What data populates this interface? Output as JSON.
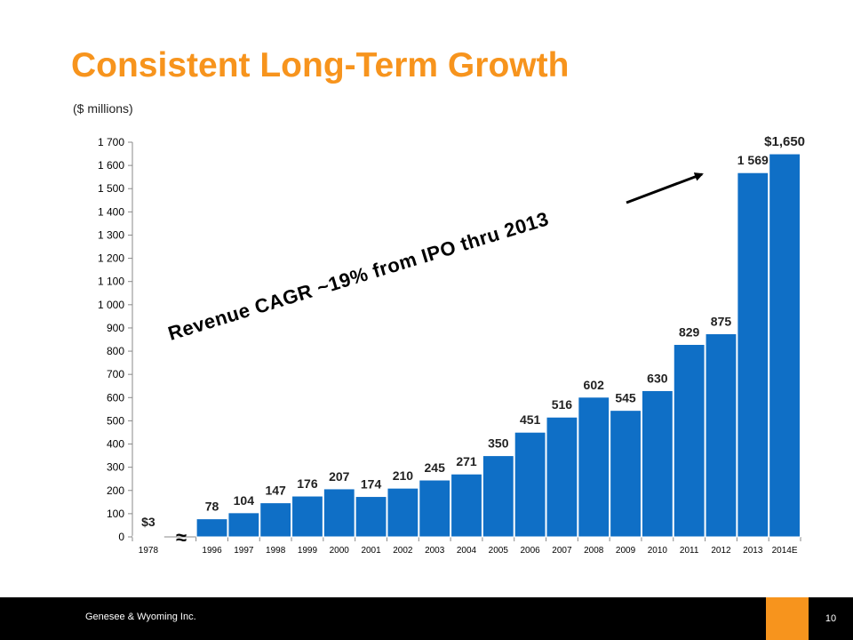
{
  "slide": {
    "title": "Consistent Long-Term Growth",
    "units": "($ millions)"
  },
  "chart_data": {
    "type": "bar",
    "categories": [
      "1978",
      "1996",
      "1997",
      "1998",
      "1999",
      "2000",
      "2001",
      "2002",
      "2003",
      "2004",
      "2005",
      "2006",
      "2007",
      "2008",
      "2009",
      "2010",
      "2011",
      "2012",
      "2013",
      "2014E"
    ],
    "values": [
      3,
      78,
      104,
      147,
      176,
      207,
      174,
      210,
      245,
      271,
      350,
      451,
      516,
      602,
      545,
      630,
      829,
      875,
      1569,
      1650
    ],
    "data_labels": [
      "$3",
      "78",
      "104",
      "147",
      "176",
      "207",
      "174",
      "210",
      "245",
      "271",
      "350",
      "451",
      "516",
      "602",
      "545",
      "630",
      "829",
      "875",
      "1 569",
      "$1,650"
    ],
    "ylim": [
      0,
      1700
    ],
    "y_ticks": [
      "0",
      "100",
      "200",
      "300",
      "400",
      "500",
      "600",
      "700",
      "800",
      "900",
      "1 000",
      "1 100",
      "1 200",
      "1 300",
      "1 400",
      "1 500",
      "1 600",
      "1 700"
    ],
    "axis_break_symbol": "≈",
    "annotation": "Revenue CAGR ~19% from IPO thru 2013",
    "grid": false,
    "bar_color": "#0f6fc6"
  },
  "footer": {
    "company": "Genesee & Wyoming Inc.",
    "page": "10"
  }
}
